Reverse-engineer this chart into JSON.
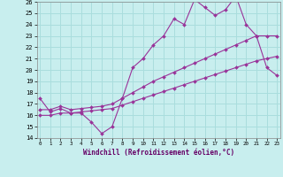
{
  "xlabel": "Windchill (Refroidissement éolien,°C)",
  "bg_color": "#c8eeee",
  "grid_color": "#aadddd",
  "line_color": "#993399",
  "x": [
    0,
    1,
    2,
    3,
    4,
    5,
    6,
    7,
    8,
    9,
    10,
    11,
    12,
    13,
    14,
    15,
    16,
    17,
    18,
    19,
    20,
    21,
    22,
    23
  ],
  "series1": [
    17.5,
    16.3,
    16.6,
    16.2,
    16.2,
    15.4,
    14.4,
    15.0,
    17.5,
    20.2,
    21.0,
    22.2,
    23.0,
    24.5,
    24.0,
    26.2,
    25.5,
    24.8,
    25.3,
    26.5,
    24.0,
    23.0,
    20.2,
    19.5
  ],
  "series2": [
    16.5,
    16.5,
    16.8,
    16.5,
    16.6,
    16.7,
    16.8,
    17.0,
    17.5,
    18.0,
    18.5,
    19.0,
    19.4,
    19.8,
    20.2,
    20.6,
    21.0,
    21.4,
    21.8,
    22.2,
    22.6,
    23.0,
    23.0,
    23.0
  ],
  "series3": [
    16.0,
    16.0,
    16.2,
    16.2,
    16.3,
    16.4,
    16.5,
    16.6,
    16.9,
    17.2,
    17.5,
    17.8,
    18.1,
    18.4,
    18.7,
    19.0,
    19.3,
    19.6,
    19.9,
    20.2,
    20.5,
    20.8,
    21.0,
    21.2
  ],
  "ylim": [
    14,
    26
  ],
  "yticks": [
    14,
    15,
    16,
    17,
    18,
    19,
    20,
    21,
    22,
    23,
    24,
    25,
    26
  ],
  "xlim": [
    0,
    23
  ],
  "xticks": [
    0,
    1,
    2,
    3,
    4,
    5,
    6,
    7,
    8,
    9,
    10,
    11,
    12,
    13,
    14,
    15,
    16,
    17,
    18,
    19,
    20,
    21,
    22,
    23
  ]
}
